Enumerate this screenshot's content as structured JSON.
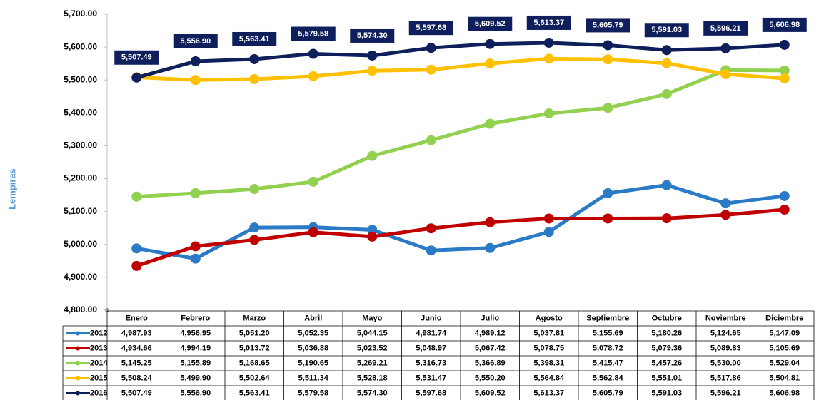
{
  "chart_data": {
    "type": "line",
    "y_label": "Lempiras",
    "categories": [
      "Enero",
      "Febrero",
      "Marzo",
      "Abril",
      "Mayo",
      "Junio",
      "Julio",
      "Agosto",
      "Septiembre",
      "Octubre",
      "Noviembre",
      "Diciembre"
    ],
    "ylim": [
      4800,
      5700
    ],
    "yticks": [
      {
        "value": 4800,
        "label": "4,800.00"
      },
      {
        "value": 4900,
        "label": "4,900.00"
      },
      {
        "value": 5000,
        "label": "5,000.00"
      },
      {
        "value": 5100,
        "label": "5,100.00"
      },
      {
        "value": 5200,
        "label": "5,200.00"
      },
      {
        "value": 5300,
        "label": "5,300.00"
      },
      {
        "value": 5400,
        "label": "5,400.00"
      },
      {
        "value": 5500,
        "label": "5,500.00"
      },
      {
        "value": 5600,
        "label": "5,600.00"
      },
      {
        "value": 5700,
        "label": "5,700.00"
      }
    ],
    "data_labels_series": [
      4
    ],
    "series": [
      {
        "name": "2012",
        "color": "#2a7ac6",
        "values": [
          4987.93,
          4956.95,
          5051.2,
          5052.35,
          5044.15,
          4981.74,
          4989.12,
          5037.81,
          5155.69,
          5180.26,
          5124.65,
          5147.09
        ],
        "value_labels": [
          "4,987.93",
          "4,956.95",
          "5,051.20",
          "5,052.35",
          "5,044.15",
          "4,981.74",
          "4,989.12",
          "5,037.81",
          "5,155.69",
          "5,180.26",
          "5,124.65",
          "5,147.09"
        ]
      },
      {
        "name": "2013",
        "color": "#c00000",
        "values": [
          4934.66,
          4994.19,
          5013.72,
          5036.88,
          5023.52,
          5048.97,
          5067.42,
          5078.75,
          5078.72,
          5079.36,
          5089.83,
          5105.69
        ],
        "value_labels": [
          "4,934.66",
          "4,994.19",
          "5,013.72",
          "5,036.88",
          "5,023.52",
          "5,048.97",
          "5,067.42",
          "5,078.75",
          "5,078.72",
          "5,079.36",
          "5,089.83",
          "5,105.69"
        ]
      },
      {
        "name": "2014",
        "color": "#92d050",
        "values": [
          5145.25,
          5155.89,
          5168.65,
          5190.65,
          5269.21,
          5316.73,
          5366.89,
          5398.31,
          5415.47,
          5457.26,
          5530.0,
          5529.04
        ],
        "value_labels": [
          "5,145.25",
          "5,155.89",
          "5,168.65",
          "5,190.65",
          "5,269.21",
          "5,316.73",
          "5,366.89",
          "5,398.31",
          "5,415.47",
          "5,457.26",
          "5,530.00",
          "5,529.04"
        ]
      },
      {
        "name": "2015",
        "color": "#ffc000",
        "values": [
          5508.24,
          5499.9,
          5502.64,
          5511.34,
          5528.18,
          5531.47,
          5550.2,
          5564.84,
          5562.84,
          5551.01,
          5517.86,
          5504.81
        ],
        "value_labels": [
          "5,508.24",
          "5,499.90",
          "5,502.64",
          "5,511.34",
          "5,528.18",
          "5,531.47",
          "5,550.20",
          "5,564.84",
          "5,562.84",
          "5,551.01",
          "5,517.86",
          "5,504.81"
        ]
      },
      {
        "name": "2016",
        "color": "#0e1f5b",
        "values": [
          5507.49,
          5556.9,
          5563.41,
          5579.58,
          5574.3,
          5597.68,
          5609.52,
          5613.37,
          5605.79,
          5591.03,
          5596.21,
          5606.98
        ],
        "value_labels": [
          "5,507.49",
          "5,556.90",
          "5,563.41",
          "5,579.58",
          "5,574.30",
          "5,597.68",
          "5,609.52",
          "5,613.37",
          "5,605.79",
          "5,591.03",
          "5,596.21",
          "5,606.98"
        ]
      }
    ]
  }
}
